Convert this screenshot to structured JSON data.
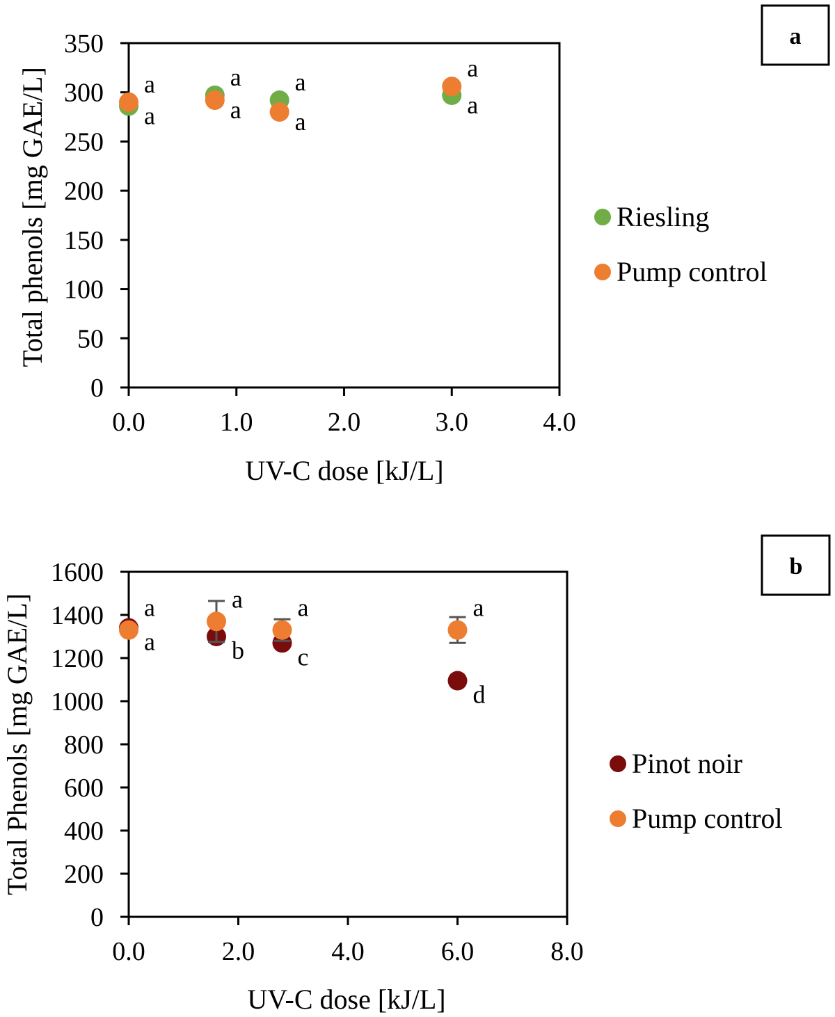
{
  "chart_data": [
    {
      "type": "scatter",
      "panel_label": "a",
      "xlabel": "UV-C dose  [kJ/L]",
      "ylabel": "Total phenols [mg GAE/L]",
      "xlim": [
        0,
        4
      ],
      "ylim": [
        0,
        350
      ],
      "xticks": [
        0,
        1,
        2,
        3,
        4
      ],
      "xtick_labels": [
        "0.0",
        "1.0",
        "2.0",
        "3.0",
        "4.0"
      ],
      "yticks": [
        0,
        50,
        100,
        150,
        200,
        250,
        300,
        350
      ],
      "ytick_labels": [
        "0",
        "50",
        "100",
        "150",
        "200",
        "250",
        "300",
        "350"
      ],
      "legend_position": "right",
      "series": [
        {
          "name": "Riesling",
          "color": "#70ad47",
          "points": [
            {
              "x": 0.0,
              "y": 286,
              "err": 0,
              "letter": "a",
              "letter_pos": "below"
            },
            {
              "x": 0.8,
              "y": 297,
              "err": 0,
              "letter": "a",
              "letter_pos": "above"
            },
            {
              "x": 1.4,
              "y": 292,
              "err": 0,
              "letter": "a",
              "letter_pos": "above"
            },
            {
              "x": 3.0,
              "y": 297,
              "err": 0,
              "letter": "a",
              "letter_pos": "below"
            }
          ]
        },
        {
          "name": "Pump control",
          "color": "#ed7d31",
          "points": [
            {
              "x": 0.0,
              "y": 290,
              "err": 0,
              "letter": "a",
              "letter_pos": "above"
            },
            {
              "x": 0.8,
              "y": 292,
              "err": 0,
              "letter": "a",
              "letter_pos": "below"
            },
            {
              "x": 1.4,
              "y": 280,
              "err": 0,
              "letter": "a",
              "letter_pos": "below"
            },
            {
              "x": 3.0,
              "y": 306,
              "err": 0,
              "letter": "a",
              "letter_pos": "above"
            }
          ]
        }
      ]
    },
    {
      "type": "scatter",
      "panel_label": "b",
      "xlabel": "UV-C dose [kJ/L]",
      "ylabel": "Total Phenols [mg GAE/L]",
      "xlim": [
        0,
        8
      ],
      "ylim": [
        0,
        1600
      ],
      "xticks": [
        0,
        2,
        4,
        6,
        8
      ],
      "xtick_labels": [
        "0.0",
        "2.0",
        "4.0",
        "6.0",
        "8.0"
      ],
      "yticks": [
        0,
        200,
        400,
        600,
        800,
        1000,
        1200,
        1400,
        1600
      ],
      "ytick_labels": [
        "0",
        "200",
        "400",
        "600",
        "800",
        "1000",
        "1200",
        "1400",
        "1600"
      ],
      "legend_position": "right",
      "series": [
        {
          "name": "Pinot noir",
          "color": "#7b0c0c",
          "points": [
            {
              "x": 0.0,
              "y": 1340,
              "err": 0,
              "letter": "a",
              "letter_pos": "below"
            },
            {
              "x": 1.6,
              "y": 1300,
              "err": 0,
              "letter": "b",
              "letter_pos": "below"
            },
            {
              "x": 2.8,
              "y": 1270,
              "err": 0,
              "letter": "c",
              "letter_pos": "below"
            },
            {
              "x": 6.0,
              "y": 1095,
              "err": 0,
              "letter": "d",
              "letter_pos": "below"
            }
          ]
        },
        {
          "name": "Pump control",
          "color": "#ed7d31",
          "points": [
            {
              "x": 0.0,
              "y": 1330,
              "err": 0,
              "letter": "a",
              "letter_pos": "above"
            },
            {
              "x": 1.6,
              "y": 1370,
              "err": 95,
              "letter": "a",
              "letter_pos": "above"
            },
            {
              "x": 2.8,
              "y": 1330,
              "err": 50,
              "letter": "a",
              "letter_pos": "above"
            },
            {
              "x": 6.0,
              "y": 1330,
              "err": 60,
              "letter": "a",
              "letter_pos": "above"
            }
          ]
        }
      ]
    }
  ]
}
